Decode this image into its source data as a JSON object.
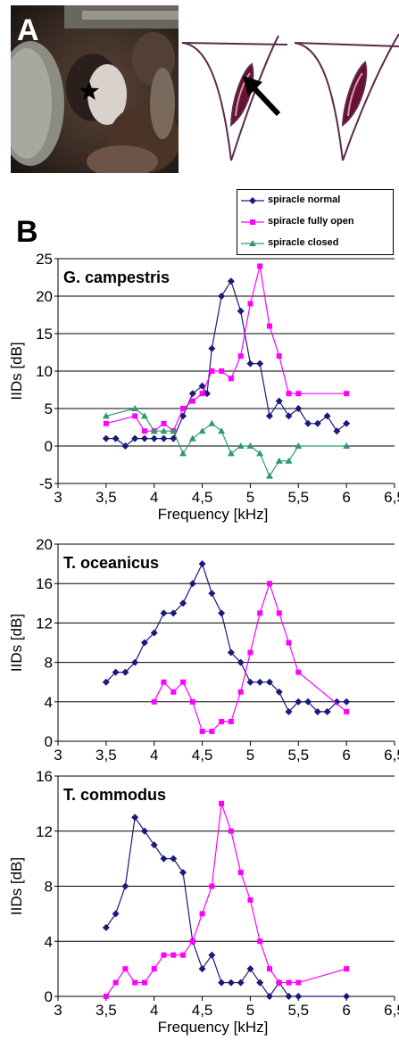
{
  "figure": {
    "panel_a_label": "A",
    "panel_b_label": "B",
    "photo_star_icon": "star-icon",
    "arrow_icon": "arrow-icon"
  },
  "legend": [
    {
      "label": "spiracle normal",
      "color": "#1a1a7a",
      "marker": "diamond"
    },
    {
      "label": "spiracle fully open",
      "color": "#ff00ff",
      "marker": "square"
    },
    {
      "label": "spiracle closed",
      "color": "#2e9a6e",
      "marker": "triangle"
    }
  ],
  "chart_data": [
    {
      "type": "line",
      "title": "G. campestris",
      "xlabel": "Frequency [kHz]",
      "ylabel": "IIDs [dB]",
      "xlim": [
        3,
        6.5
      ],
      "ylim": [
        -5,
        25
      ],
      "xticks": [
        "3",
        "3,5",
        "4",
        "4,5",
        "5",
        "5,5",
        "6",
        "6,5"
      ],
      "yticks": [
        "-5",
        "0",
        "5",
        "10",
        "15",
        "20",
        "25"
      ],
      "grid": true,
      "series": [
        {
          "name": "spiracle normal",
          "color": "#1a1a7a",
          "marker": "diamond",
          "x": [
            3.5,
            3.6,
            3.7,
            3.8,
            3.9,
            4.0,
            4.1,
            4.2,
            4.3,
            4.4,
            4.5,
            4.55,
            4.6,
            4.7,
            4.8,
            4.9,
            5.0,
            5.1,
            5.2,
            5.3,
            5.4,
            5.5,
            5.6,
            5.7,
            5.8,
            5.9,
            6.0
          ],
          "y": [
            1,
            1,
            0,
            1,
            1,
            1,
            1,
            1,
            4,
            7,
            8,
            7,
            13,
            20,
            22,
            18,
            11,
            11,
            4,
            6,
            4,
            5,
            3,
            3,
            4,
            2,
            3
          ]
        },
        {
          "name": "spiracle fully open",
          "color": "#ff00ff",
          "marker": "square",
          "x": [
            3.5,
            3.8,
            3.9,
            4.0,
            4.1,
            4.2,
            4.3,
            4.4,
            4.5,
            4.6,
            4.7,
            4.8,
            4.9,
            5.0,
            5.1,
            5.2,
            5.3,
            5.4,
            5.5,
            6.0
          ],
          "y": [
            3,
            4,
            2,
            2,
            3,
            2,
            5,
            6,
            7,
            10,
            10,
            9,
            12,
            19,
            24,
            16,
            12,
            7,
            7,
            7
          ]
        },
        {
          "name": "spiracle closed",
          "color": "#2e9a6e",
          "marker": "triangle",
          "x": [
            3.5,
            3.8,
            3.9,
            4.0,
            4.1,
            4.2,
            4.3,
            4.4,
            4.5,
            4.6,
            4.7,
            4.8,
            4.9,
            5.0,
            5.1,
            5.2,
            5.3,
            5.4,
            5.5,
            6.0
          ],
          "y": [
            4,
            5,
            4,
            2,
            2,
            2,
            -1,
            1,
            2,
            3,
            2,
            -1,
            0,
            0,
            -1,
            -4,
            -2,
            -2,
            0,
            0
          ]
        }
      ]
    },
    {
      "type": "line",
      "title": "T. oceanicus",
      "xlabel": "Frequency [kHz]",
      "ylabel": "IIDs [dB]",
      "xlim": [
        3,
        6.5
      ],
      "ylim": [
        0,
        20
      ],
      "xticks": [
        "3",
        "3,5",
        "4",
        "4,5",
        "5",
        "5,5",
        "6",
        "6,5"
      ],
      "yticks": [
        "0",
        "4",
        "8",
        "12",
        "16",
        "20"
      ],
      "grid": true,
      "series": [
        {
          "name": "spiracle normal",
          "color": "#1a1a7a",
          "marker": "diamond",
          "x": [
            3.5,
            3.6,
            3.7,
            3.8,
            3.9,
            4.0,
            4.1,
            4.2,
            4.3,
            4.4,
            4.5,
            4.6,
            4.7,
            4.8,
            4.9,
            5.0,
            5.1,
            5.2,
            5.3,
            5.4,
            5.5,
            5.6,
            5.7,
            5.8,
            5.9,
            6.0
          ],
          "y": [
            6,
            7,
            7,
            8,
            10,
            11,
            13,
            13,
            14,
            16,
            18,
            15,
            13,
            9,
            8,
            6,
            6,
            6,
            5,
            3,
            4,
            4,
            3,
            3,
            4,
            4
          ]
        },
        {
          "name": "spiracle fully open",
          "color": "#ff00ff",
          "marker": "square",
          "x": [
            4.0,
            4.1,
            4.2,
            4.3,
            4.4,
            4.5,
            4.6,
            4.7,
            4.8,
            4.9,
            5.0,
            5.1,
            5.2,
            5.3,
            5.4,
            5.5,
            6.0
          ],
          "y": [
            4,
            6,
            5,
            6,
            4,
            1,
            1,
            2,
            2,
            5,
            9,
            13,
            16,
            13,
            10,
            7,
            3
          ]
        }
      ]
    },
    {
      "type": "line",
      "title": "T. commodus",
      "xlabel": "Frequency [kHz]",
      "ylabel": "IIDs [dB]",
      "xlim": [
        3,
        6.5
      ],
      "ylim": [
        0,
        16
      ],
      "xticks": [
        "3",
        "3,5",
        "4",
        "4,5",
        "5",
        "5,5",
        "6",
        "6,5"
      ],
      "yticks": [
        "0",
        "4",
        "8",
        "12",
        "16"
      ],
      "grid": true,
      "series": [
        {
          "name": "spiracle normal",
          "color": "#1a1a7a",
          "marker": "diamond",
          "x": [
            3.5,
            3.6,
            3.7,
            3.8,
            3.9,
            4.0,
            4.1,
            4.2,
            4.3,
            4.4,
            4.5,
            4.6,
            4.7,
            4.8,
            4.9,
            5.0,
            5.1,
            5.2,
            5.3,
            5.4,
            5.5,
            6.0
          ],
          "y": [
            5,
            6,
            8,
            13,
            12,
            11,
            10,
            10,
            9,
            4,
            2,
            3,
            1,
            1,
            1,
            2,
            1,
            0,
            1,
            0,
            0,
            0
          ]
        },
        {
          "name": "spiracle fully open",
          "color": "#ff00ff",
          "marker": "square",
          "x": [
            3.5,
            3.6,
            3.7,
            3.8,
            3.9,
            4.0,
            4.1,
            4.2,
            4.3,
            4.4,
            4.5,
            4.6,
            4.7,
            4.8,
            4.9,
            5.0,
            5.1,
            5.2,
            5.3,
            5.4,
            5.5,
            6.0
          ],
          "y": [
            0,
            1,
            2,
            1,
            1,
            2,
            3,
            3,
            3,
            4,
            6,
            8,
            14,
            12,
            9,
            7,
            4,
            2,
            1,
            1,
            1,
            2
          ]
        }
      ]
    }
  ]
}
